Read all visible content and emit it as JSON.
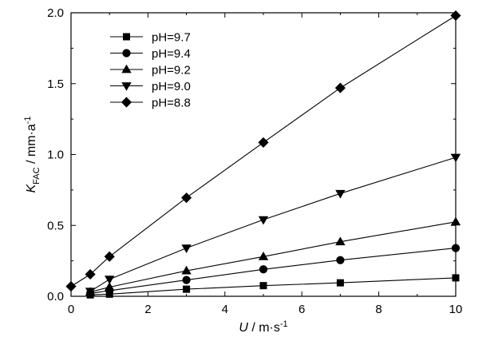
{
  "chart_data": {
    "type": "line",
    "xlabel": {
      "symbol": "U",
      "unit": " / m·s",
      "sup": "-1"
    },
    "ylabel": {
      "symbol": "K",
      "sub": "FAC",
      "unit": " / mm·a",
      "sup": "-1"
    },
    "xlim": [
      0,
      10
    ],
    "ylim": [
      0.0,
      2.0
    ],
    "xticks": [
      "0",
      "2",
      "4",
      "6",
      "8",
      "10"
    ],
    "yticks": [
      "0.0",
      "0.5",
      "1.0",
      "1.5",
      "2.0"
    ],
    "grid": false,
    "legend_position": "top-left",
    "series": [
      {
        "name": "pH=9.7",
        "marker": "square",
        "x": [
          0.5,
          1,
          3,
          5,
          7,
          10
        ],
        "y": [
          0.01,
          0.015,
          0.05,
          0.075,
          0.095,
          0.13
        ]
      },
      {
        "name": "pH=9.4",
        "marker": "circle",
        "x": [
          0.5,
          1,
          3,
          5,
          7,
          10
        ],
        "y": [
          0.02,
          0.04,
          0.115,
          0.19,
          0.255,
          0.34
        ]
      },
      {
        "name": "pH=9.2",
        "marker": "triangle-up",
        "x": [
          0.5,
          1,
          3,
          5,
          7,
          10
        ],
        "y": [
          0.03,
          0.065,
          0.18,
          0.28,
          0.385,
          0.525
        ]
      },
      {
        "name": "pH=9.0",
        "marker": "triangle-down",
        "x": [
          0.5,
          1,
          3,
          5,
          7,
          10
        ],
        "y": [
          0.035,
          0.12,
          0.34,
          0.54,
          0.725,
          0.98
        ]
      },
      {
        "name": "pH=8.8",
        "marker": "diamond",
        "x": [
          0,
          0.5,
          1,
          3,
          5,
          7,
          10
        ],
        "y": [
          0.07,
          0.155,
          0.28,
          0.695,
          1.085,
          1.47,
          1.98
        ]
      }
    ]
  }
}
